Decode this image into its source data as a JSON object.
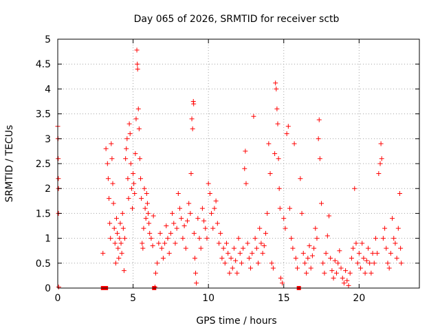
{
  "chart_data": {
    "type": "scatter",
    "title": "Day 065 of 2026, SRMTID for receiver sctb",
    "xlabel": "GPS time / hours",
    "ylabel": "SRMTID / TECUs",
    "xlim": [
      0,
      24
    ],
    "ylim": [
      0,
      5
    ],
    "xticks": [
      0,
      5,
      10,
      15,
      20
    ],
    "yticks": [
      0,
      0.5,
      1,
      1.5,
      2,
      2.5,
      3,
      3.5,
      4,
      4.5,
      5
    ],
    "xtick_labels": [
      "0",
      "5",
      "10",
      "15",
      "20"
    ],
    "ytick_labels": [
      "0",
      "0.5",
      "1",
      "1.5",
      "2",
      "2.5",
      "3",
      "3.5",
      "4",
      "4.5",
      "5"
    ],
    "grid": true,
    "marker": "plus",
    "color": "#ff0000",
    "series": [
      {
        "name": "SRMTID",
        "points": [
          [
            0.0,
            3.25
          ],
          [
            0.02,
            3.0
          ],
          [
            0.03,
            2.6
          ],
          [
            0.04,
            2.2
          ],
          [
            0.05,
            2.0
          ],
          [
            0.05,
            1.5
          ],
          [
            0.06,
            0.02
          ],
          [
            3.0,
            0.0
          ],
          [
            3.1,
            0.0
          ],
          [
            3.2,
            0.0
          ],
          [
            3.0,
            0.7
          ],
          [
            3.2,
            2.8
          ],
          [
            3.3,
            2.5
          ],
          [
            3.35,
            2.2
          ],
          [
            3.4,
            1.8
          ],
          [
            3.45,
            1.3
          ],
          [
            3.5,
            1.0
          ],
          [
            3.55,
            2.9
          ],
          [
            3.6,
            2.6
          ],
          [
            3.65,
            2.1
          ],
          [
            3.7,
            1.7
          ],
          [
            3.75,
            1.2
          ],
          [
            3.8,
            0.9
          ],
          [
            3.85,
            0.5
          ],
          [
            3.9,
            1.4
          ],
          [
            3.95,
            1.1
          ],
          [
            4.0,
            0.8
          ],
          [
            4.05,
            0.6
          ],
          [
            4.1,
            1.0
          ],
          [
            4.15,
            1.3
          ],
          [
            4.2,
            0.9
          ],
          [
            4.25,
            0.7
          ],
          [
            4.3,
            1.5
          ],
          [
            4.35,
            1.2
          ],
          [
            4.4,
            0.35
          ],
          [
            4.45,
            1.0
          ],
          [
            4.5,
            2.6
          ],
          [
            4.55,
            2.8
          ],
          [
            4.6,
            3.0
          ],
          [
            4.65,
            2.2
          ],
          [
            4.7,
            1.8
          ],
          [
            4.75,
            3.3
          ],
          [
            4.8,
            3.1
          ],
          [
            4.85,
            2.5
          ],
          [
            4.9,
            2.0
          ],
          [
            4.95,
            1.6
          ],
          [
            5.0,
            2.3
          ],
          [
            5.05,
            2.1
          ],
          [
            5.1,
            1.9
          ],
          [
            5.15,
            2.7
          ],
          [
            5.2,
            3.4
          ],
          [
            5.25,
            4.78
          ],
          [
            5.28,
            4.5
          ],
          [
            5.3,
            4.4
          ],
          [
            5.35,
            3.6
          ],
          [
            5.4,
            3.2
          ],
          [
            5.45,
            2.6
          ],
          [
            5.5,
            2.2
          ],
          [
            5.55,
            1.8
          ],
          [
            5.6,
            0.9
          ],
          [
            5.65,
            0.8
          ],
          [
            5.7,
            1.2
          ],
          [
            5.75,
            2.0
          ],
          [
            5.8,
            1.6
          ],
          [
            5.85,
            1.4
          ],
          [
            5.9,
            1.9
          ],
          [
            5.95,
            1.7
          ],
          [
            6.0,
            1.5
          ],
          [
            6.05,
            1.3
          ],
          [
            6.1,
            1.1
          ],
          [
            6.2,
            1.0
          ],
          [
            6.3,
            0.85
          ],
          [
            6.35,
            1.45
          ],
          [
            6.4,
            0.0
          ],
          [
            6.45,
            0.02
          ],
          [
            6.5,
            0.3
          ],
          [
            6.6,
            0.5
          ],
          [
            6.7,
            0.9
          ],
          [
            6.8,
            1.1
          ],
          [
            6.9,
            0.8
          ],
          [
            7.0,
            0.6
          ],
          [
            7.1,
            0.9
          ],
          [
            7.2,
            1.25
          ],
          [
            7.3,
            1.0
          ],
          [
            7.4,
            0.7
          ],
          [
            7.5,
            1.1
          ],
          [
            7.6,
            1.5
          ],
          [
            7.7,
            1.3
          ],
          [
            7.8,
            0.9
          ],
          [
            7.9,
            1.2
          ],
          [
            8.0,
            1.9
          ],
          [
            8.1,
            1.6
          ],
          [
            8.2,
            1.4
          ],
          [
            8.3,
            1.0
          ],
          [
            8.4,
            1.25
          ],
          [
            8.5,
            0.8
          ],
          [
            8.6,
            1.35
          ],
          [
            8.7,
            1.7
          ],
          [
            8.8,
            1.5
          ],
          [
            8.85,
            2.3
          ],
          [
            8.9,
            3.4
          ],
          [
            8.95,
            3.2
          ],
          [
            9.0,
            3.75
          ],
          [
            9.02,
            3.7
          ],
          [
            9.05,
            1.1
          ],
          [
            9.1,
            0.6
          ],
          [
            9.15,
            0.3
          ],
          [
            9.2,
            0.1
          ],
          [
            9.3,
            1.4
          ],
          [
            9.4,
            1.0
          ],
          [
            9.5,
            0.8
          ],
          [
            9.6,
            1.6
          ],
          [
            9.7,
            1.35
          ],
          [
            9.8,
            1.2
          ],
          [
            9.9,
            1.0
          ],
          [
            10.0,
            2.1
          ],
          [
            10.1,
            1.9
          ],
          [
            10.2,
            1.5
          ],
          [
            10.3,
            1.2
          ],
          [
            10.4,
            1.6
          ],
          [
            10.5,
            1.75
          ],
          [
            10.6,
            1.3
          ],
          [
            10.7,
            0.9
          ],
          [
            10.8,
            1.1
          ],
          [
            10.9,
            0.6
          ],
          [
            11.0,
            0.8
          ],
          [
            11.1,
            0.5
          ],
          [
            11.2,
            0.9
          ],
          [
            11.3,
            0.7
          ],
          [
            11.4,
            0.3
          ],
          [
            11.5,
            0.6
          ],
          [
            11.6,
            0.4
          ],
          [
            11.7,
            0.8
          ],
          [
            11.8,
            0.55
          ],
          [
            11.9,
            0.3
          ],
          [
            12.0,
            1.0
          ],
          [
            12.1,
            0.7
          ],
          [
            12.2,
            0.5
          ],
          [
            12.3,
            0.8
          ],
          [
            12.4,
            2.4
          ],
          [
            12.45,
            2.75
          ],
          [
            12.5,
            2.1
          ],
          [
            12.6,
            0.9
          ],
          [
            12.7,
            0.6
          ],
          [
            12.8,
            0.4
          ],
          [
            12.9,
            0.7
          ],
          [
            13.0,
            3.45
          ],
          [
            13.1,
            1.0
          ],
          [
            13.2,
            0.8
          ],
          [
            13.3,
            0.5
          ],
          [
            13.4,
            1.2
          ],
          [
            13.5,
            0.9
          ],
          [
            13.6,
            0.7
          ],
          [
            13.7,
            0.85
          ],
          [
            13.8,
            1.1
          ],
          [
            13.9,
            1.5
          ],
          [
            14.0,
            2.9
          ],
          [
            14.1,
            2.3
          ],
          [
            14.2,
            0.5
          ],
          [
            14.3,
            0.4
          ],
          [
            14.4,
            2.7
          ],
          [
            14.45,
            4.12
          ],
          [
            14.5,
            4.0
          ],
          [
            14.55,
            3.6
          ],
          [
            14.6,
            3.3
          ],
          [
            14.65,
            2.6
          ],
          [
            14.7,
            2.0
          ],
          [
            14.75,
            1.6
          ],
          [
            14.8,
            0.2
          ],
          [
            14.9,
            0.1
          ],
          [
            15.0,
            1.4
          ],
          [
            15.1,
            1.2
          ],
          [
            15.2,
            3.1
          ],
          [
            15.3,
            3.25
          ],
          [
            15.4,
            1.6
          ],
          [
            15.5,
            1.0
          ],
          [
            15.6,
            0.8
          ],
          [
            15.7,
            2.9
          ],
          [
            15.8,
            0.6
          ],
          [
            15.9,
            0.4
          ],
          [
            16.0,
            0.0
          ],
          [
            16.1,
            2.2
          ],
          [
            16.2,
            1.5
          ],
          [
            16.3,
            0.7
          ],
          [
            16.4,
            0.5
          ],
          [
            16.5,
            0.3
          ],
          [
            16.6,
            0.6
          ],
          [
            16.7,
            0.85
          ],
          [
            16.8,
            0.4
          ],
          [
            16.9,
            0.65
          ],
          [
            17.0,
            0.8
          ],
          [
            17.1,
            1.2
          ],
          [
            17.2,
            1.0
          ],
          [
            17.3,
            3.0
          ],
          [
            17.35,
            3.38
          ],
          [
            17.4,
            2.6
          ],
          [
            17.5,
            1.7
          ],
          [
            17.6,
            0.5
          ],
          [
            17.7,
            0.3
          ],
          [
            17.8,
            0.7
          ],
          [
            17.9,
            1.05
          ],
          [
            18.0,
            1.45
          ],
          [
            18.1,
            0.6
          ],
          [
            18.2,
            0.35
          ],
          [
            18.3,
            0.2
          ],
          [
            18.4,
            0.55
          ],
          [
            18.5,
            0.3
          ],
          [
            18.6,
            0.5
          ],
          [
            18.7,
            0.75
          ],
          [
            18.8,
            0.4
          ],
          [
            18.9,
            0.2
          ],
          [
            19.0,
            0.1
          ],
          [
            19.1,
            0.35
          ],
          [
            19.2,
            0.15
          ],
          [
            19.3,
            0.05
          ],
          [
            19.4,
            0.3
          ],
          [
            19.5,
            0.6
          ],
          [
            19.6,
            0.8
          ],
          [
            19.7,
            2.0
          ],
          [
            19.8,
            0.9
          ],
          [
            19.9,
            0.5
          ],
          [
            20.0,
            0.7
          ],
          [
            20.1,
            0.4
          ],
          [
            20.2,
            0.9
          ],
          [
            20.3,
            0.6
          ],
          [
            20.4,
            0.3
          ],
          [
            20.5,
            0.55
          ],
          [
            20.6,
            0.8
          ],
          [
            20.7,
            0.5
          ],
          [
            20.8,
            0.3
          ],
          [
            20.9,
            0.7
          ],
          [
            21.0,
            0.5
          ],
          [
            21.1,
            1.0
          ],
          [
            21.2,
            0.7
          ],
          [
            21.3,
            2.3
          ],
          [
            21.4,
            2.5
          ],
          [
            21.45,
            2.9
          ],
          [
            21.5,
            2.6
          ],
          [
            21.6,
            1.0
          ],
          [
            21.7,
            1.2
          ],
          [
            21.8,
            0.8
          ],
          [
            21.9,
            0.5
          ],
          [
            22.0,
            0.4
          ],
          [
            22.1,
            0.7
          ],
          [
            22.2,
            1.4
          ],
          [
            22.3,
            1.0
          ],
          [
            22.4,
            0.9
          ],
          [
            22.5,
            0.6
          ],
          [
            22.6,
            1.2
          ],
          [
            22.7,
            1.9
          ],
          [
            22.75,
            0.8
          ],
          [
            22.8,
            0.5
          ]
        ]
      }
    ]
  }
}
